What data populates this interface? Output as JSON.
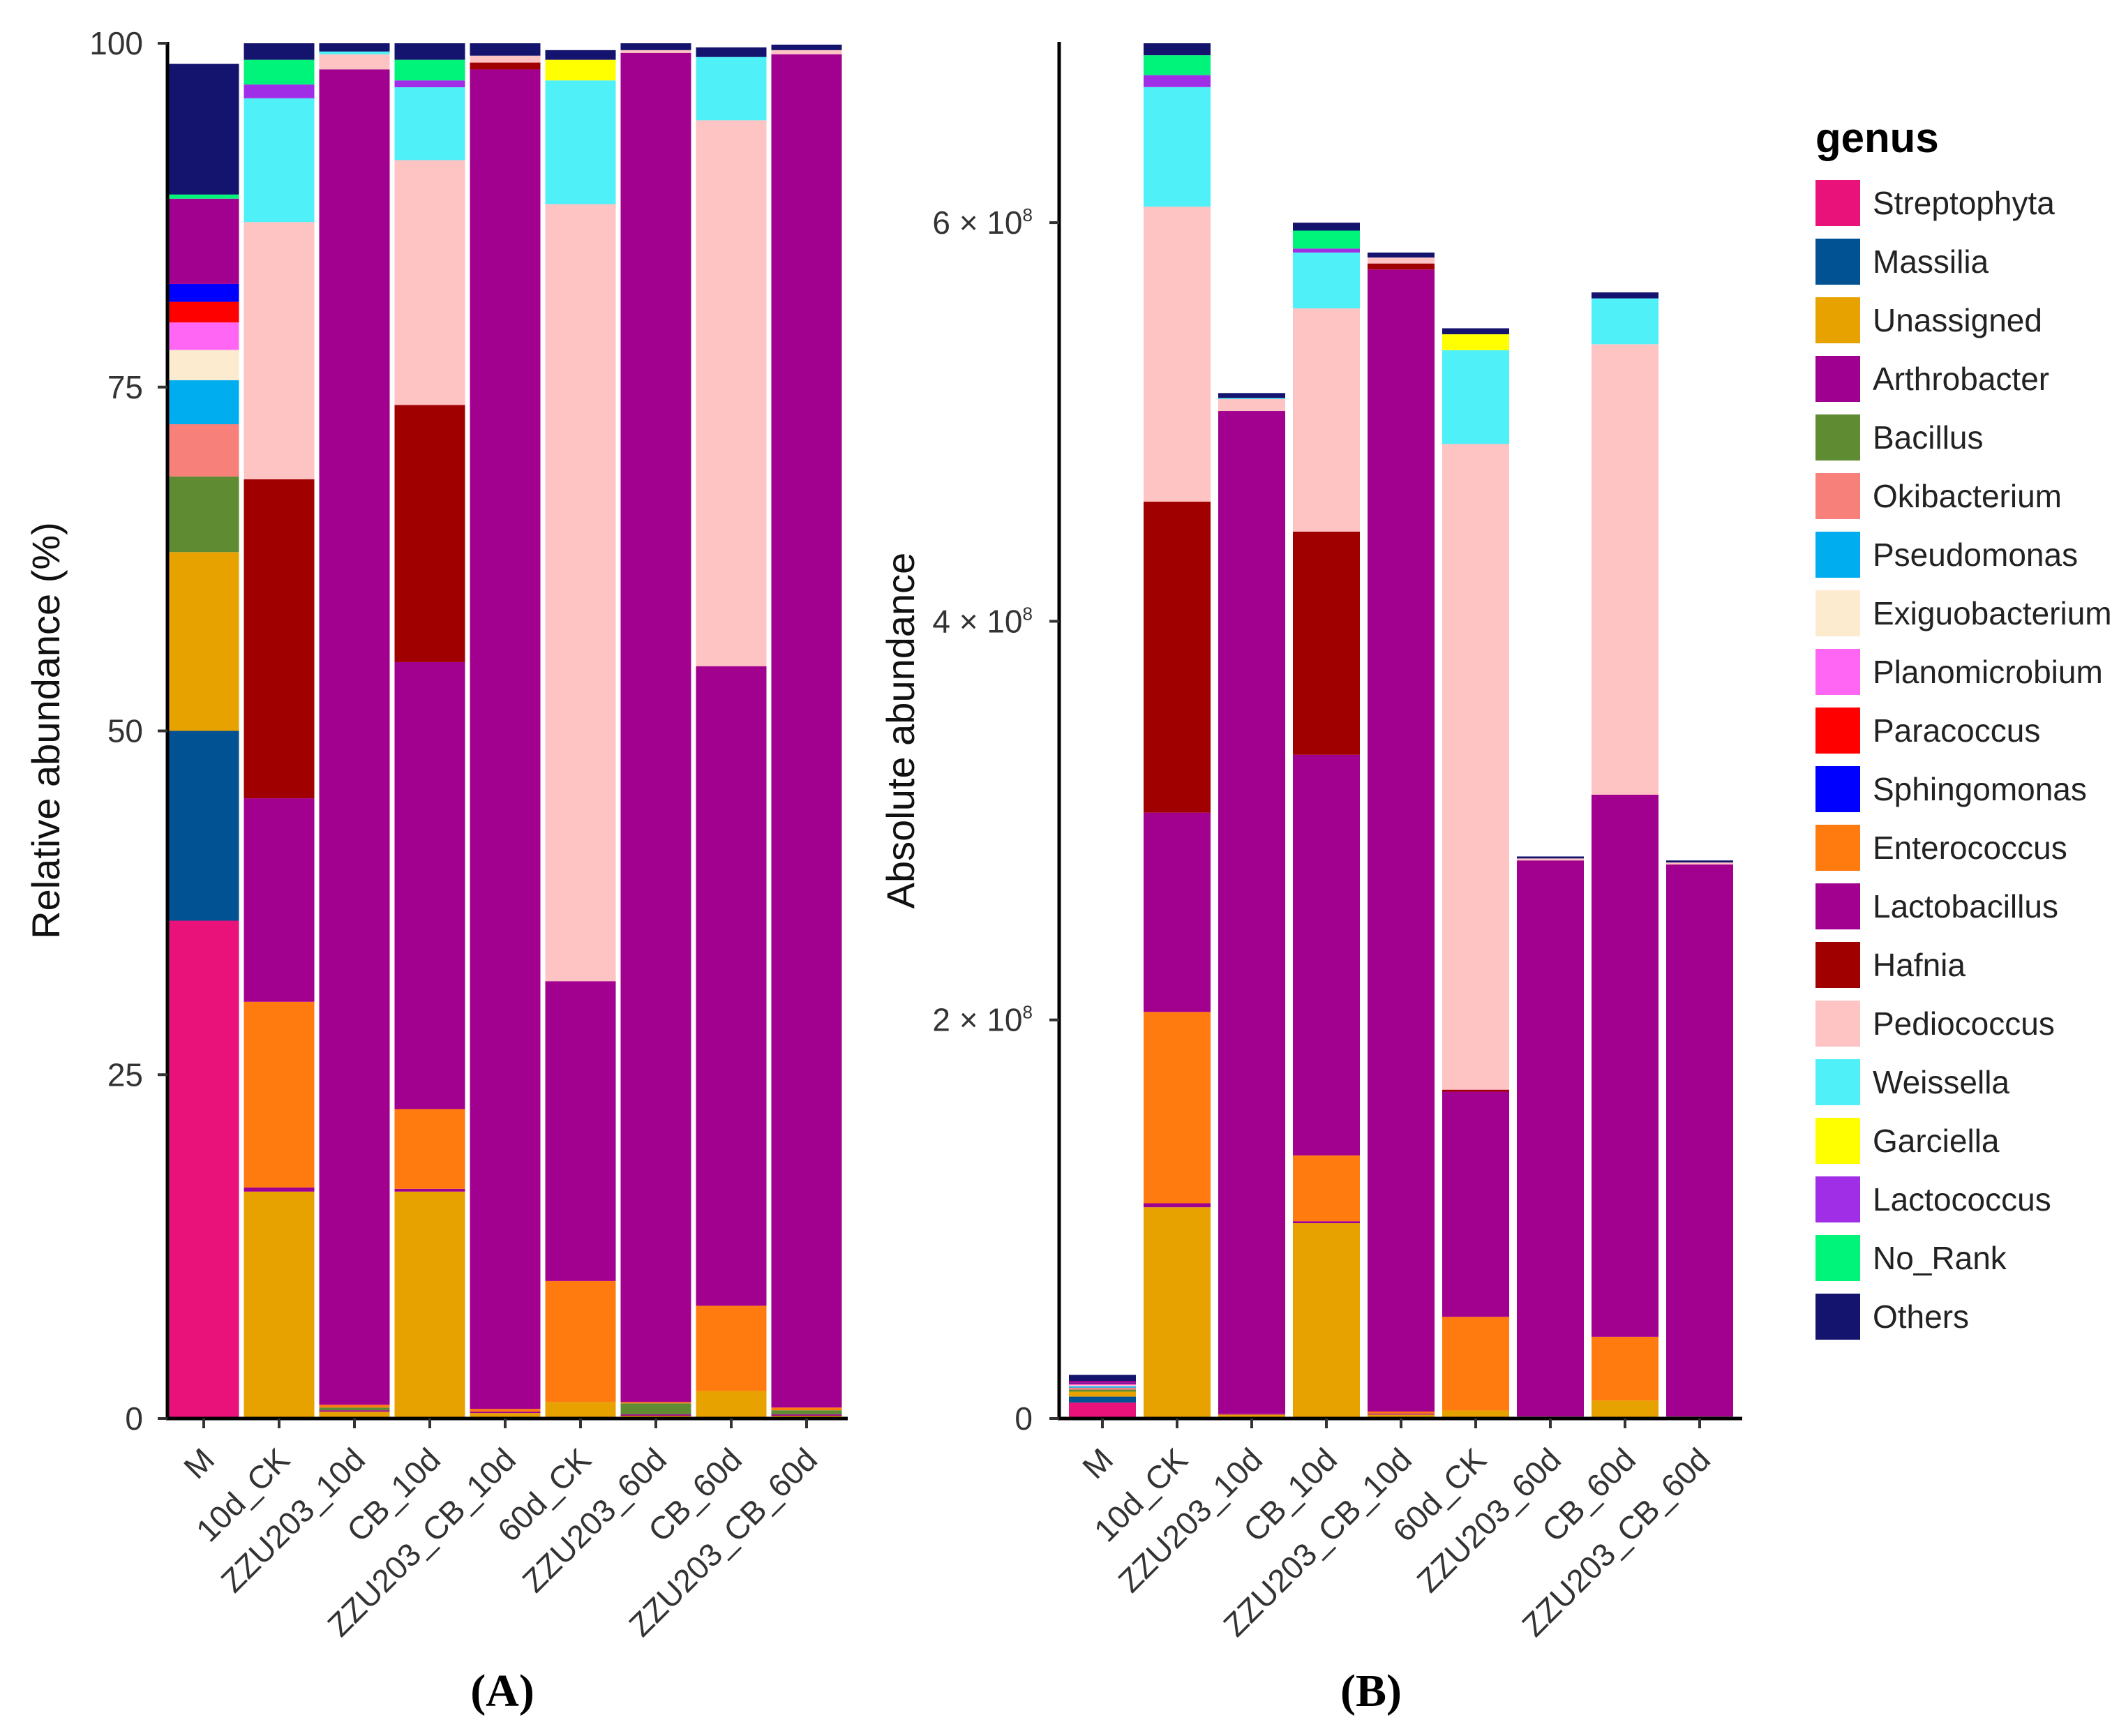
{
  "chart_data": [
    {
      "id": "A",
      "type": "bar",
      "stacked": true,
      "panel_label": "(A)",
      "xlabel": "",
      "ylabel": "Relative abundance (%)",
      "ylim": [
        0,
        100
      ],
      "yticks": [
        0,
        25,
        50,
        75,
        100
      ],
      "ytick_labels": [
        "0",
        "25",
        "50",
        "75",
        "100"
      ],
      "categories": [
        "M",
        "10d_CK",
        "ZZU203_10d",
        "CB_10d",
        "ZZU203_CB_10d",
        "60d_CK",
        "ZZU203_60d",
        "CB_60d",
        "ZZU203_CB_60d"
      ],
      "series": [
        {
          "name": "Streptophyta",
          "values": [
            36.2,
            0,
            0,
            0,
            0,
            0,
            0,
            0,
            0
          ]
        },
        {
          "name": "Massilia",
          "values": [
            13.8,
            0,
            0,
            0,
            0,
            0,
            0,
            0,
            0
          ]
        },
        {
          "name": "Unassigned",
          "values": [
            13.0,
            16.5,
            0.5,
            16.5,
            0.4,
            1.2,
            0.2,
            2.0,
            0.2
          ]
        },
        {
          "name": "Arthrobacter",
          "values": [
            0,
            0.3,
            0.1,
            0.2,
            0.1,
            0,
            0.1,
            0,
            0.1
          ]
        },
        {
          "name": "Bacillus",
          "values": [
            5.5,
            0,
            0.2,
            0,
            0,
            0,
            0.8,
            0,
            0.3
          ]
        },
        {
          "name": "Okibacterium",
          "values": [
            3.8,
            0,
            0,
            0,
            0,
            0,
            0,
            0,
            0
          ]
        },
        {
          "name": "Pseudomonas",
          "values": [
            3.2,
            0,
            0,
            0,
            0,
            0,
            0,
            0,
            0
          ]
        },
        {
          "name": "Exiguobacterium",
          "values": [
            2.2,
            0,
            0,
            0,
            0,
            0,
            0,
            0,
            0
          ]
        },
        {
          "name": "Planomicrobium",
          "values": [
            2.0,
            0,
            0,
            0,
            0,
            0,
            0,
            0,
            0
          ]
        },
        {
          "name": "Paracoccus",
          "values": [
            1.5,
            0,
            0,
            0,
            0,
            0,
            0,
            0,
            0
          ]
        },
        {
          "name": "Sphingomonas",
          "values": [
            1.3,
            0,
            0,
            0,
            0,
            0,
            0,
            0,
            0
          ]
        },
        {
          "name": "Enterococcus",
          "values": [
            0,
            13.5,
            0.2,
            5.8,
            0.2,
            8.8,
            0.1,
            6.2,
            0.2
          ]
        },
        {
          "name": "Lactobacillus",
          "values": [
            6.2,
            14.8,
            97.1,
            32.5,
            97.4,
            21.8,
            98.1,
            46.5,
            98.4
          ]
        },
        {
          "name": "Hafnia",
          "values": [
            0,
            23.2,
            0,
            18.7,
            0.5,
            0,
            0,
            0,
            0
          ]
        },
        {
          "name": "Pediococcus",
          "values": [
            0,
            18.7,
            1.1,
            17.8,
            0.5,
            56.5,
            0.2,
            39.7,
            0.3
          ]
        },
        {
          "name": "Weissella",
          "values": [
            0,
            9.0,
            0.2,
            5.3,
            0,
            9.0,
            0,
            4.6,
            0
          ]
        },
        {
          "name": "Garciella",
          "values": [
            0,
            0,
            0,
            0,
            0,
            1.5,
            0,
            0,
            0
          ]
        },
        {
          "name": "Lactococcus",
          "values": [
            0,
            1.0,
            0,
            0.5,
            0,
            0,
            0,
            0,
            0
          ]
        },
        {
          "name": "No_Rank",
          "values": [
            0.3,
            1.8,
            0,
            1.5,
            0,
            0,
            0,
            0,
            0
          ]
        },
        {
          "name": "Others",
          "values": [
            9.5,
            1.2,
            0.6,
            1.2,
            0.9,
            0.7,
            0.5,
            0.7,
            0.4
          ]
        }
      ]
    },
    {
      "id": "B",
      "type": "bar",
      "stacked": true,
      "panel_label": "(B)",
      "xlabel": "",
      "ylabel": "Absolute abundance",
      "ylim": [
        0,
        690000000
      ],
      "yticks": [
        0,
        200000000,
        400000000,
        600000000
      ],
      "ytick_labels": [
        {
          "mantissa": "0",
          "exponent": ""
        },
        {
          "mantissa": "2 × 10",
          "exponent": "8"
        },
        {
          "mantissa": "4 × 10",
          "exponent": "8"
        },
        {
          "mantissa": "6 × 10",
          "exponent": "8"
        }
      ],
      "categories": [
        "M",
        "10d_CK",
        "ZZU203_10d",
        "CB_10d",
        "ZZU203_CB_10d",
        "60d_CK",
        "ZZU203_60d",
        "CB_60d",
        "ZZU203_CB_60d"
      ],
      "series": [
        {
          "name": "Streptophyta",
          "values": [
            8000000,
            0,
            0,
            0,
            0,
            0,
            0,
            0,
            0
          ]
        },
        {
          "name": "Massilia",
          "values": [
            3000000,
            0,
            0,
            0,
            0,
            0,
            0,
            0,
            0
          ]
        },
        {
          "name": "Unassigned",
          "values": [
            2500000,
            106000000,
            2000000,
            98000000,
            2000000,
            4000000,
            500000,
            9000000,
            500000
          ]
        },
        {
          "name": "Arthrobacter",
          "values": [
            0,
            2000000,
            500000,
            1000000,
            500000,
            0,
            0,
            0,
            0
          ]
        },
        {
          "name": "Bacillus",
          "values": [
            1000000,
            0,
            0,
            0,
            0,
            0,
            500000,
            0,
            500000
          ]
        },
        {
          "name": "Okibacterium",
          "values": [
            1000000,
            0,
            0,
            0,
            0,
            0,
            0,
            0,
            0
          ]
        },
        {
          "name": "Pseudomonas",
          "values": [
            700000,
            0,
            0,
            0,
            0,
            0,
            0,
            0,
            0
          ]
        },
        {
          "name": "Exiguobacterium",
          "values": [
            500000,
            0,
            0,
            0,
            0,
            0,
            0,
            0,
            0
          ]
        },
        {
          "name": "Planomicrobium",
          "values": [
            500000,
            0,
            0,
            0,
            0,
            0,
            0,
            0,
            0
          ]
        },
        {
          "name": "Paracoccus",
          "values": [
            400000,
            0,
            0,
            0,
            0,
            0,
            0,
            0,
            0
          ]
        },
        {
          "name": "Sphingomonas",
          "values": [
            300000,
            0,
            0,
            0,
            0,
            0,
            0,
            0,
            0
          ]
        },
        {
          "name": "Enterococcus",
          "values": [
            0,
            96000000,
            0,
            33000000,
            1000000,
            47000000,
            0,
            32000000,
            0
          ]
        },
        {
          "name": "Lactobacillus",
          "values": [
            1000000,
            100000000,
            503000000,
            201000000,
            573000000,
            113000000,
            279000000,
            272000000,
            277000000
          ]
        },
        {
          "name": "Hafnia",
          "values": [
            0,
            156000000,
            0,
            112000000,
            3000000,
            1000000,
            0,
            0,
            0
          ]
        },
        {
          "name": "Pediococcus",
          "values": [
            0,
            148000000,
            6000000,
            112000000,
            3000000,
            324000000,
            1000000,
            226000000,
            1000000
          ]
        },
        {
          "name": "Weissella",
          "values": [
            0,
            60000000,
            500000,
            28000000,
            0,
            47000000,
            0,
            23000000,
            0
          ]
        },
        {
          "name": "Garciella",
          "values": [
            0,
            0,
            0,
            0,
            0,
            8000000,
            0,
            0,
            0
          ]
        },
        {
          "name": "Lactococcus",
          "values": [
            0,
            6000000,
            0,
            2000000,
            0,
            0,
            0,
            0,
            0
          ]
        },
        {
          "name": "No_Rank",
          "values": [
            0,
            10000000,
            0,
            9000000,
            0,
            0,
            0,
            0,
            0
          ]
        },
        {
          "name": "Others",
          "values": [
            3000000,
            6000000,
            2500000,
            4000000,
            2500000,
            3000000,
            1000000,
            3000000,
            1000000
          ]
        }
      ]
    }
  ],
  "legend": {
    "title": "genus",
    "placement": "right",
    "entries": [
      {
        "label": "Streptophyta",
        "color": "#e8127a"
      },
      {
        "label": "Massilia",
        "color": "#005293"
      },
      {
        "label": "Unassigned",
        "color": "#e8a200"
      },
      {
        "label": "Arthrobacter",
        "color": "#a0008f"
      },
      {
        "label": "Bacillus",
        "color": "#5f8c33"
      },
      {
        "label": "Okibacterium",
        "color": "#f7817a"
      },
      {
        "label": "Pseudomonas",
        "color": "#00aef0"
      },
      {
        "label": "Exiguobacterium",
        "color": "#fdebd0"
      },
      {
        "label": "Planomicrobium",
        "color": "#ff66f4"
      },
      {
        "label": "Paracoccus",
        "color": "#ff0000"
      },
      {
        "label": "Sphingomonas",
        "color": "#0000ff"
      },
      {
        "label": "Enterococcus",
        "color": "#ff7b0f"
      },
      {
        "label": "Lactobacillus",
        "color": "#a2008f"
      },
      {
        "label": "Hafnia",
        "color": "#a00000"
      },
      {
        "label": "Pediococcus",
        "color": "#fec3c3"
      },
      {
        "label": "Weissella",
        "color": "#4ff0f8"
      },
      {
        "label": "Garciella",
        "color": "#ffff00"
      },
      {
        "label": "Lactococcus",
        "color": "#a02ee6"
      },
      {
        "label": "No_Rank",
        "color": "#00f47a"
      },
      {
        "label": "Others",
        "color": "#14146e"
      }
    ]
  }
}
